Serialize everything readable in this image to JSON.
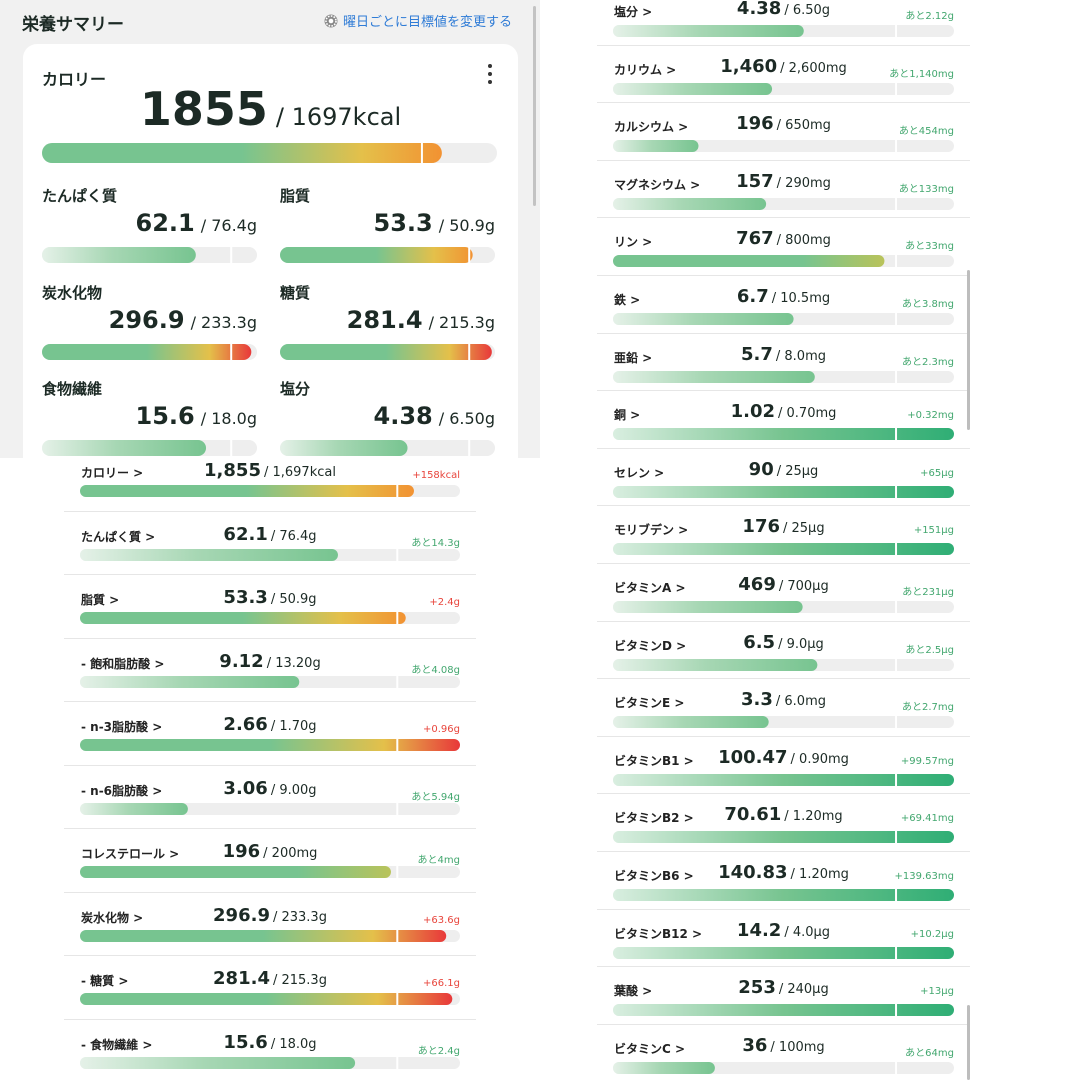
{
  "summary": {
    "title": "栄養サマリー",
    "goal_link": "曜日ごとに目標値を変更する",
    "calorie": {
      "label": "カロリー",
      "value": "1855",
      "goal": "/ 1697kcal",
      "ratio": 1.093
    },
    "cells": [
      {
        "name": "たんぱく質",
        "value": "62.1",
        "goal": "/ 76.4g",
        "ratio": 0.813
      },
      {
        "name": "脂質",
        "value": "53.3",
        "goal": "/ 50.9g",
        "ratio": 1.047
      },
      {
        "name": "炭水化物",
        "value": "296.9",
        "goal": "/ 233.3g",
        "ratio": 1.273
      },
      {
        "name": "糖質",
        "value": "281.4",
        "goal": "/ 215.3g",
        "ratio": 1.307
      },
      {
        "name": "食物繊維",
        "value": "15.6",
        "goal": "/ 18.0g",
        "ratio": 0.867
      },
      {
        "name": "塩分",
        "value": "4.38",
        "goal": "/ 6.50g",
        "ratio": 0.674
      }
    ]
  },
  "left_list": [
    {
      "name": "カロリー >",
      "value": "1,855",
      "goal": "/ 1,697kcal",
      "diff": "+158kcal",
      "status": "over",
      "ratio": 1.093
    },
    {
      "name": "たんぱく質 >",
      "value": "62.1",
      "goal": "/ 76.4g",
      "diff": "あと14.3g",
      "status": "under",
      "ratio": 0.813
    },
    {
      "name": "脂質 >",
      "value": "53.3",
      "goal": "/ 50.9g",
      "diff": "+2.4g",
      "status": "over",
      "ratio": 1.047
    },
    {
      "name": "- 飽和脂肪酸 >",
      "value": "9.12",
      "goal": "/ 13.20g",
      "diff": "あと4.08g",
      "status": "under",
      "ratio": 0.691
    },
    {
      "name": "- n-3脂肪酸 >",
      "value": "2.66",
      "goal": "/ 1.70g",
      "diff": "+0.96g",
      "status": "over",
      "ratio": 1.565
    },
    {
      "name": "- n-6脂肪酸 >",
      "value": "3.06",
      "goal": "/ 9.00g",
      "diff": "あと5.94g",
      "status": "under",
      "ratio": 0.34
    },
    {
      "name": "コレステロール >",
      "value": "196",
      "goal": "/ 200mg",
      "diff": "あと4mg",
      "status": "under",
      "ratio": 0.98
    },
    {
      "name": "炭水化物 >",
      "value": "296.9",
      "goal": "/ 233.3g",
      "diff": "+63.6g",
      "status": "over",
      "ratio": 1.273
    },
    {
      "name": "- 糖質 >",
      "value": "281.4",
      "goal": "/ 215.3g",
      "diff": "+66.1g",
      "status": "over",
      "ratio": 1.307
    },
    {
      "name": "- 食物繊維 >",
      "value": "15.6",
      "goal": "/ 18.0g",
      "diff": "あと2.4g",
      "status": "under",
      "ratio": 0.867
    }
  ],
  "right_list": [
    {
      "name": "塩分 >",
      "value": "4.38",
      "goal": "/ 6.50g",
      "diff": "あと2.12g",
      "status": "under",
      "ratio": 0.674
    },
    {
      "name": "カリウム >",
      "value": "1,460",
      "goal": "/ 2,600mg",
      "diff": "あと1,140mg",
      "status": "under",
      "ratio": 0.562
    },
    {
      "name": "カルシウム >",
      "value": "196",
      "goal": "/ 650mg",
      "diff": "あと454mg",
      "status": "under",
      "ratio": 0.302
    },
    {
      "name": "マグネシウム >",
      "value": "157",
      "goal": "/ 290mg",
      "diff": "あと133mg",
      "status": "under",
      "ratio": 0.541
    },
    {
      "name": "リン >",
      "value": "767",
      "goal": "/ 800mg",
      "diff": "あと33mg",
      "status": "under",
      "ratio": 0.959
    },
    {
      "name": "鉄 >",
      "value": "6.7",
      "goal": "/ 10.5mg",
      "diff": "あと3.8mg",
      "status": "under",
      "ratio": 0.638
    },
    {
      "name": "亜鉛 >",
      "value": "5.7",
      "goal": "/ 8.0mg",
      "diff": "あと2.3mg",
      "status": "under",
      "ratio": 0.713
    },
    {
      "name": "銅 >",
      "value": "1.02",
      "goal": "/ 0.70mg",
      "diff": "+0.32mg",
      "status": "over_ok",
      "ratio": 1.457
    },
    {
      "name": "セレン >",
      "value": "90",
      "goal": "/ 25μg",
      "diff": "+65μg",
      "status": "over_ok",
      "ratio": 3.6
    },
    {
      "name": "モリブデン >",
      "value": "176",
      "goal": "/ 25μg",
      "diff": "+151μg",
      "status": "over_ok",
      "ratio": 7.04
    },
    {
      "name": "ビタミンA >",
      "value": "469",
      "goal": "/ 700μg",
      "diff": "あと231μg",
      "status": "under",
      "ratio": 0.67
    },
    {
      "name": "ビタミンD >",
      "value": "6.5",
      "goal": "/ 9.0μg",
      "diff": "あと2.5μg",
      "status": "under",
      "ratio": 0.722
    },
    {
      "name": "ビタミンE >",
      "value": "3.3",
      "goal": "/ 6.0mg",
      "diff": "あと2.7mg",
      "status": "under",
      "ratio": 0.55
    },
    {
      "name": "ビタミンB1 >",
      "value": "100.47",
      "goal": "/ 0.90mg",
      "diff": "+99.57mg",
      "status": "over_ok",
      "ratio": 111.6
    },
    {
      "name": "ビタミンB2 >",
      "value": "70.61",
      "goal": "/ 1.20mg",
      "diff": "+69.41mg",
      "status": "over_ok",
      "ratio": 58.8
    },
    {
      "name": "ビタミンB6 >",
      "value": "140.83",
      "goal": "/ 1.20mg",
      "diff": "+139.63mg",
      "status": "over_ok",
      "ratio": 117.4
    },
    {
      "name": "ビタミンB12 >",
      "value": "14.2",
      "goal": "/ 4.0μg",
      "diff": "+10.2μg",
      "status": "over_ok",
      "ratio": 3.55
    },
    {
      "name": "葉酸 >",
      "value": "253",
      "goal": "/ 240μg",
      "diff": "+13μg",
      "status": "over_ok",
      "ratio": 1.054
    },
    {
      "name": "ビタミンC >",
      "value": "36",
      "goal": "/ 100mg",
      "diff": "あと64mg",
      "status": "under",
      "ratio": 0.36
    }
  ],
  "colors": {
    "green": "#77c490",
    "green_dark": "#2fae75",
    "yellow": "#e4c04a",
    "orange": "#f29232",
    "red": "#e8383a",
    "track": "#eeeeee",
    "diff_green": "#43a76f",
    "diff_red": "#e8453c"
  }
}
